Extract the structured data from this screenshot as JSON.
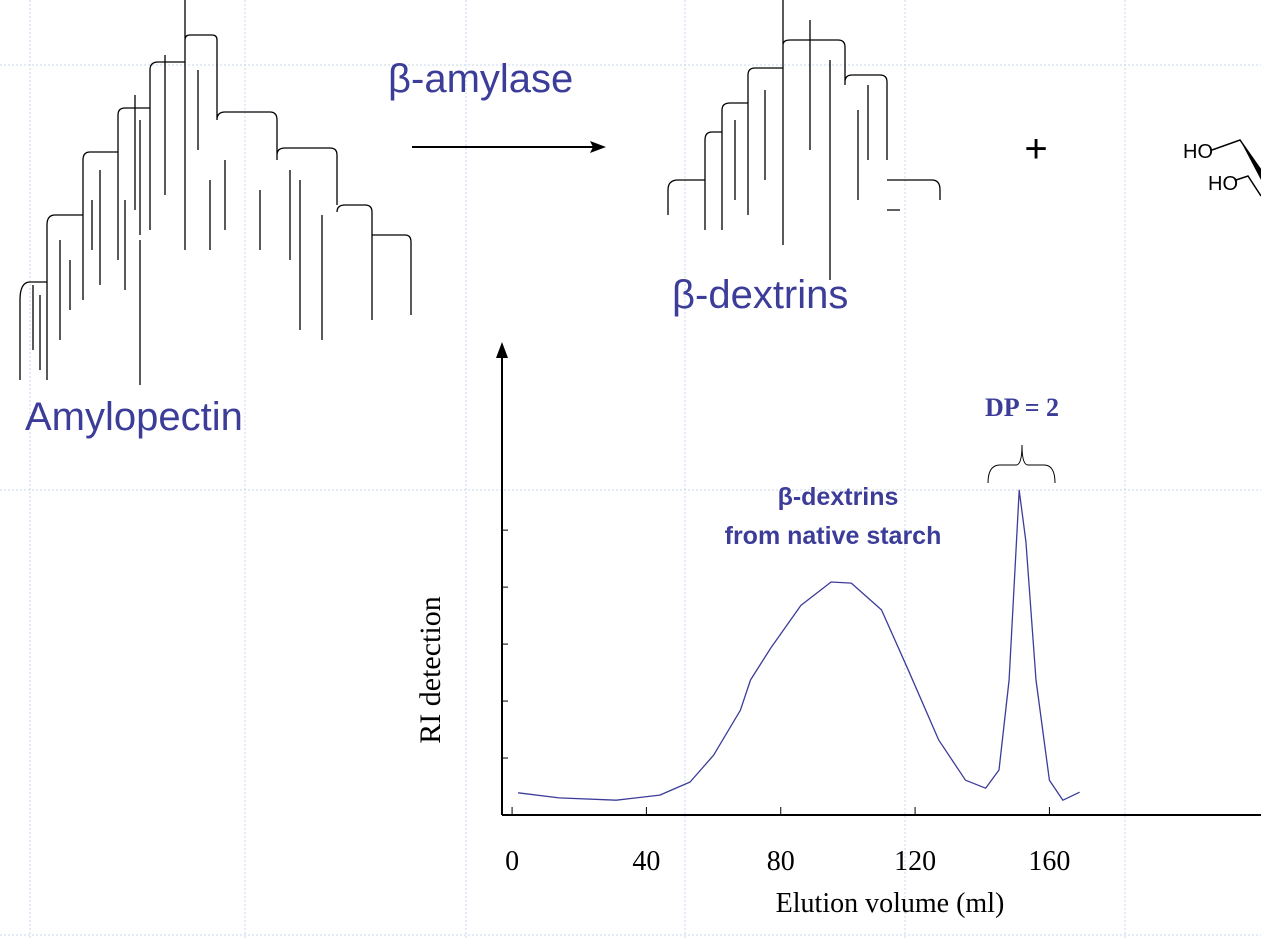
{
  "chart_data": {
    "type": "line",
    "x_label": "Elution volume (ml)",
    "y_label": "RI detection",
    "annotations": [
      "β-dextrins",
      "from native starch",
      "DP = 2"
    ],
    "x": [
      1.8,
      14,
      31,
      44,
      53,
      60,
      68,
      71,
      77,
      86,
      95,
      101,
      110,
      118,
      127,
      135,
      141,
      145,
      148,
      151,
      153,
      156,
      160,
      164,
      169
    ],
    "series": [
      {
        "color": "#3c3c99",
        "values": [
          3.9,
          3.0,
          2.6,
          3.5,
          5.8,
          10.5,
          18.4,
          23.7,
          29.3,
          36.8,
          40.9,
          40.7,
          36,
          25.4,
          13.2,
          6.1,
          4.7,
          7.9,
          23.7,
          57,
          48,
          23.7,
          6.1,
          2.6,
          4.0
        ]
      }
    ],
    "xlim": [
      -3,
      223
    ],
    "xticks": [
      0,
      40,
      80,
      120,
      160
    ],
    "ylim": [
      0,
      82.5
    ],
    "yticks": [
      10,
      20,
      30,
      40,
      50
    ]
  },
  "diagram": {
    "substrate": "Amylopectin",
    "enzyme": "β-amylase",
    "product": "β-dextrins",
    "plus": "+",
    "hydroxyl_1": "HO",
    "hydroxyl_2": "HO"
  }
}
